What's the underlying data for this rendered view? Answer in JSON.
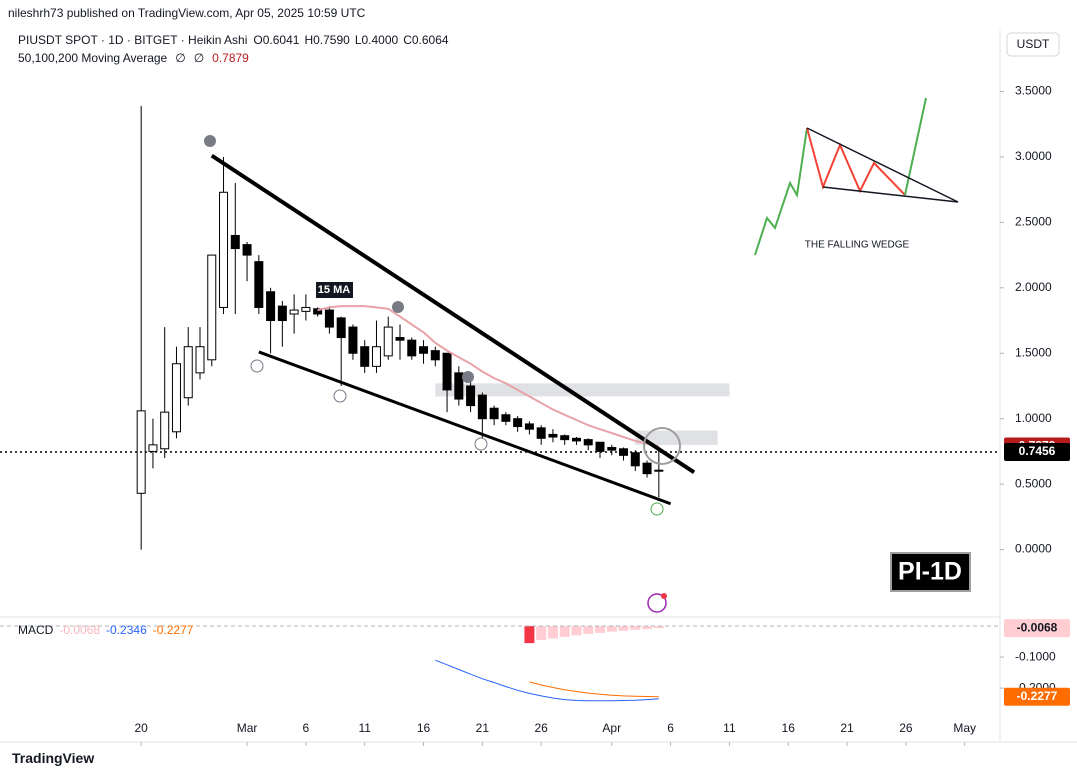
{
  "header": {
    "publisher": "nileshrh73 published on TradingView.com, Apr 05, 2025 10:59 UTC"
  },
  "footer": {
    "brand": "TradingView"
  },
  "chart_data": [
    {
      "type": "candlestick",
      "title": "PIUSDT SPOT · 1D · BITGET · Heikin Ashi",
      "ohlc_legend": [
        "O0.6041",
        "H0.7590",
        "L0.4000",
        "C0.6064"
      ],
      "indicator_label": "50,100,200 Moving Average",
      "indicator_empty": [
        "∅",
        "∅"
      ],
      "currency": "USDT",
      "watermark": "PI-1D",
      "ma_label": "15 MA",
      "inset_title": "THE FALLING WEDGE",
      "up_color": "#ffffff",
      "down_color": "#000000",
      "x": [
        "2025-02-20",
        "2025-02-21",
        "2025-02-22",
        "2025-02-23",
        "2025-02-24",
        "2025-02-25",
        "2025-02-26",
        "2025-02-27",
        "2025-02-28",
        "2025-03-01",
        "2025-03-02",
        "2025-03-03",
        "2025-03-04",
        "2025-03-05",
        "2025-03-06",
        "2025-03-07",
        "2025-03-08",
        "2025-03-09",
        "2025-03-10",
        "2025-03-11",
        "2025-03-12",
        "2025-03-13",
        "2025-03-14",
        "2025-03-15",
        "2025-03-16",
        "2025-03-17",
        "2025-03-18",
        "2025-03-19",
        "2025-03-20",
        "2025-03-21",
        "2025-03-22",
        "2025-03-23",
        "2025-03-24",
        "2025-03-25",
        "2025-03-26",
        "2025-03-27",
        "2025-03-28",
        "2025-03-29",
        "2025-03-30",
        "2025-03-31",
        "2025-04-01",
        "2025-04-02",
        "2025-04-03",
        "2025-04-04",
        "2025-04-05"
      ],
      "open": [
        0.43,
        0.75,
        0.77,
        0.9,
        1.16,
        1.35,
        1.45,
        1.85,
        2.4,
        2.33,
        2.2,
        1.97,
        1.86,
        1.8,
        1.82,
        1.84,
        1.83,
        1.77,
        1.7,
        1.55,
        1.4,
        1.48,
        1.62,
        1.6,
        1.55,
        1.52,
        1.5,
        1.35,
        1.25,
        1.18,
        1.08,
        1.03,
        1.0,
        0.96,
        0.93,
        0.88,
        0.87,
        0.85,
        0.84,
        0.82,
        0.78,
        0.77,
        0.74,
        0.66,
        0.6041
      ],
      "high": [
        3.39,
        1.0,
        1.7,
        1.55,
        1.7,
        1.7,
        2.25,
        3.0,
        2.8,
        2.35,
        2.25,
        2.0,
        1.9,
        1.95,
        1.95,
        1.85,
        1.86,
        1.78,
        1.72,
        1.6,
        1.75,
        1.78,
        1.72,
        1.62,
        1.6,
        1.55,
        1.5,
        1.4,
        1.3,
        1.2,
        1.1,
        1.05,
        1.02,
        0.98,
        0.95,
        0.92,
        0.88,
        0.86,
        0.85,
        0.82,
        0.8,
        0.78,
        0.76,
        0.68,
        0.759
      ],
      "low": [
        0.0,
        0.62,
        0.7,
        0.85,
        1.1,
        1.3,
        1.4,
        1.8,
        1.8,
        2.05,
        1.8,
        1.5,
        1.55,
        1.65,
        1.75,
        1.78,
        1.65,
        1.25,
        1.45,
        1.35,
        1.35,
        1.45,
        1.45,
        1.45,
        1.42,
        1.4,
        1.05,
        1.1,
        1.05,
        0.85,
        0.95,
        0.95,
        0.9,
        0.88,
        0.8,
        0.82,
        0.8,
        0.8,
        0.76,
        0.7,
        0.72,
        0.68,
        0.6,
        0.55,
        0.4
      ],
      "close": [
        1.06,
        0.8,
        1.05,
        1.42,
        1.55,
        1.55,
        2.25,
        2.73,
        2.3,
        2.25,
        1.85,
        1.75,
        1.75,
        1.83,
        1.85,
        1.8,
        1.7,
        1.62,
        1.5,
        1.4,
        1.55,
        1.7,
        1.6,
        1.48,
        1.5,
        1.45,
        1.22,
        1.15,
        1.1,
        1.0,
        1.0,
        0.98,
        0.94,
        0.92,
        0.85,
        0.86,
        0.84,
        0.83,
        0.8,
        0.75,
        0.76,
        0.72,
        0.64,
        0.58,
        0.6064
      ],
      "series": [
        {
          "name": "15 MA",
          "color": "#e8a3a8",
          "values": [
            null,
            null,
            null,
            null,
            null,
            null,
            null,
            null,
            null,
            null,
            null,
            null,
            null,
            null,
            null,
            1.83,
            1.85,
            1.86,
            1.86,
            1.86,
            1.85,
            1.84,
            1.78,
            1.72,
            1.66,
            1.58,
            1.52,
            1.47,
            1.42,
            1.36,
            1.31,
            1.27,
            1.22,
            1.17,
            1.12,
            1.07,
            1.03,
            0.99,
            0.95,
            0.92,
            0.89,
            0.86,
            0.83,
            0.81,
            0.7879
          ]
        }
      ],
      "last_price": 0.7456,
      "trendlines": [
        {
          "from": [
            "2025-02-26",
            3.01
          ],
          "to": [
            "2025-04-08",
            0.59
          ]
        },
        {
          "from": [
            "2025-03-02",
            1.51
          ],
          "to": [
            "2025-04-06",
            0.35
          ]
        }
      ],
      "zones": [
        {
          "from": [
            "2025-03-17",
            1.27
          ],
          "to": [
            "2025-04-11",
            1.17
          ]
        },
        {
          "from": [
            "2025-04-03",
            0.91
          ],
          "to": [
            "2025-04-10",
            0.8
          ]
        }
      ],
      "xlim": [
        "2025-02-08",
        "2025-05-04"
      ],
      "xticks": [
        {
          "value": "2025-02-20",
          "label": "20"
        },
        {
          "value": "2025-03-01",
          "label": "Mar"
        },
        {
          "value": "2025-03-06",
          "label": "6"
        },
        {
          "value": "2025-03-11",
          "label": "11"
        },
        {
          "value": "2025-03-16",
          "label": "16"
        },
        {
          "value": "2025-03-21",
          "label": "21"
        },
        {
          "value": "2025-03-26",
          "label": "26"
        },
        {
          "value": "2025-04-01",
          "label": "Apr"
        },
        {
          "value": "2025-04-06",
          "label": "6"
        },
        {
          "value": "2025-04-11",
          "label": "11"
        },
        {
          "value": "2025-04-16",
          "label": "16"
        },
        {
          "value": "2025-04-21",
          "label": "21"
        },
        {
          "value": "2025-04-26",
          "label": "26"
        },
        {
          "value": "2025-05-01",
          "label": "May"
        }
      ],
      "ylim": [
        -0.5,
        3.97
      ],
      "yticks": [
        {
          "value": 0,
          "label": "0.0000"
        },
        {
          "value": 0.5,
          "label": "0.5000"
        },
        {
          "value": 1,
          "label": "1.0000"
        },
        {
          "value": 1.5,
          "label": "1.5000"
        },
        {
          "value": 2,
          "label": "2.0000"
        },
        {
          "value": 2.5,
          "label": "2.5000"
        },
        {
          "value": 3,
          "label": "3.0000"
        },
        {
          "value": 3.5,
          "label": "3.5000"
        }
      ],
      "grid": false
    },
    {
      "type": "macd",
      "title": "MACD",
      "histogram": {
        "rising_color": "#ffcdd2",
        "falling_color": "#f23645",
        "values": [
          null,
          null,
          null,
          null,
          null,
          null,
          null,
          null,
          null,
          null,
          null,
          null,
          null,
          null,
          null,
          null,
          null,
          null,
          null,
          null,
          null,
          null,
          null,
          null,
          null,
          null,
          null,
          null,
          null,
          null,
          null,
          null,
          null,
          -0.055,
          -0.045,
          -0.04,
          -0.035,
          -0.03,
          -0.025,
          -0.022,
          -0.018,
          -0.015,
          -0.012,
          -0.01,
          -0.0068
        ]
      },
      "series": [
        {
          "color": "#2962ff",
          "values": [
            null,
            null,
            null,
            null,
            null,
            null,
            null,
            null,
            null,
            null,
            null,
            null,
            null,
            null,
            null,
            null,
            null,
            null,
            null,
            null,
            null,
            null,
            null,
            null,
            null,
            -0.11,
            -0.125,
            -0.14,
            -0.155,
            -0.17,
            -0.182,
            -0.195,
            -0.207,
            -0.217,
            -0.225,
            -0.232,
            -0.237,
            -0.24,
            -0.241,
            -0.241,
            -0.241,
            -0.24,
            -0.239,
            -0.237,
            -0.2346
          ]
        },
        {
          "color": "#ff6d00",
          "values": [
            null,
            null,
            null,
            null,
            null,
            null,
            null,
            null,
            null,
            null,
            null,
            null,
            null,
            null,
            null,
            null,
            null,
            null,
            null,
            null,
            null,
            null,
            null,
            null,
            null,
            null,
            null,
            null,
            null,
            null,
            null,
            null,
            null,
            -0.18,
            -0.19,
            -0.198,
            -0.205,
            -0.211,
            -0.216,
            -0.22,
            -0.223,
            -0.225,
            -0.226,
            -0.227,
            -0.2277
          ]
        }
      ],
      "ylim": [
        -0.277,
        0.026
      ],
      "yticks": [
        {
          "value": -0.1,
          "label": "-0.1000"
        },
        {
          "value": -0.2,
          "label": "-0.2000"
        }
      ]
    }
  ]
}
